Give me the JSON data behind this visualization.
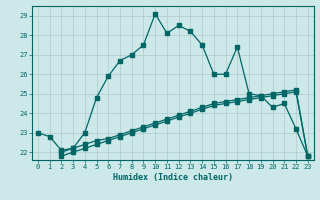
{
  "title": "",
  "xlabel": "Humidex (Indice chaleur)",
  "bg_color": "#cce8e8",
  "grid_color": "#b0c8c8",
  "line_color": "#006666",
  "xlim": [
    -0.5,
    23.5
  ],
  "ylim": [
    21.6,
    29.5
  ],
  "xticks": [
    0,
    1,
    2,
    3,
    4,
    5,
    6,
    7,
    8,
    9,
    10,
    11,
    12,
    13,
    14,
    15,
    16,
    17,
    18,
    19,
    20,
    21,
    22,
    23
  ],
  "yticks": [
    22,
    23,
    24,
    25,
    26,
    27,
    28,
    29
  ],
  "curve1_x": [
    0,
    1,
    2,
    3,
    4,
    5,
    6,
    7,
    8,
    9,
    10,
    11,
    12,
    13,
    14,
    15,
    16,
    17,
    18,
    19,
    20,
    21,
    22,
    23
  ],
  "curve1_y": [
    23.0,
    22.8,
    22.1,
    22.2,
    23.0,
    24.8,
    25.9,
    26.7,
    27.0,
    27.5,
    29.1,
    28.1,
    28.5,
    28.2,
    27.5,
    26.0,
    26.0,
    27.4,
    25.0,
    24.9,
    24.3,
    24.5,
    23.2,
    21.8
  ],
  "curve2_x": [
    2,
    3,
    4,
    5,
    6,
    7,
    8,
    9,
    10,
    11,
    12,
    13,
    14,
    15,
    16,
    17,
    18,
    19,
    20,
    21,
    22,
    23
  ],
  "curve2_y": [
    21.8,
    22.0,
    22.2,
    22.4,
    22.6,
    22.8,
    23.0,
    23.2,
    23.4,
    23.6,
    23.8,
    24.0,
    24.2,
    24.4,
    24.5,
    24.6,
    24.7,
    24.8,
    24.9,
    25.0,
    25.1,
    21.8
  ],
  "curve3_x": [
    2,
    3,
    4,
    5,
    6,
    7,
    8,
    9,
    10,
    11,
    12,
    13,
    14,
    15,
    16,
    17,
    18,
    19,
    20,
    21,
    22,
    23
  ],
  "curve3_y": [
    22.0,
    22.2,
    22.4,
    22.6,
    22.7,
    22.9,
    23.1,
    23.3,
    23.5,
    23.7,
    23.9,
    24.1,
    24.3,
    24.5,
    24.6,
    24.7,
    24.8,
    24.9,
    25.0,
    25.1,
    25.2,
    21.8
  ]
}
